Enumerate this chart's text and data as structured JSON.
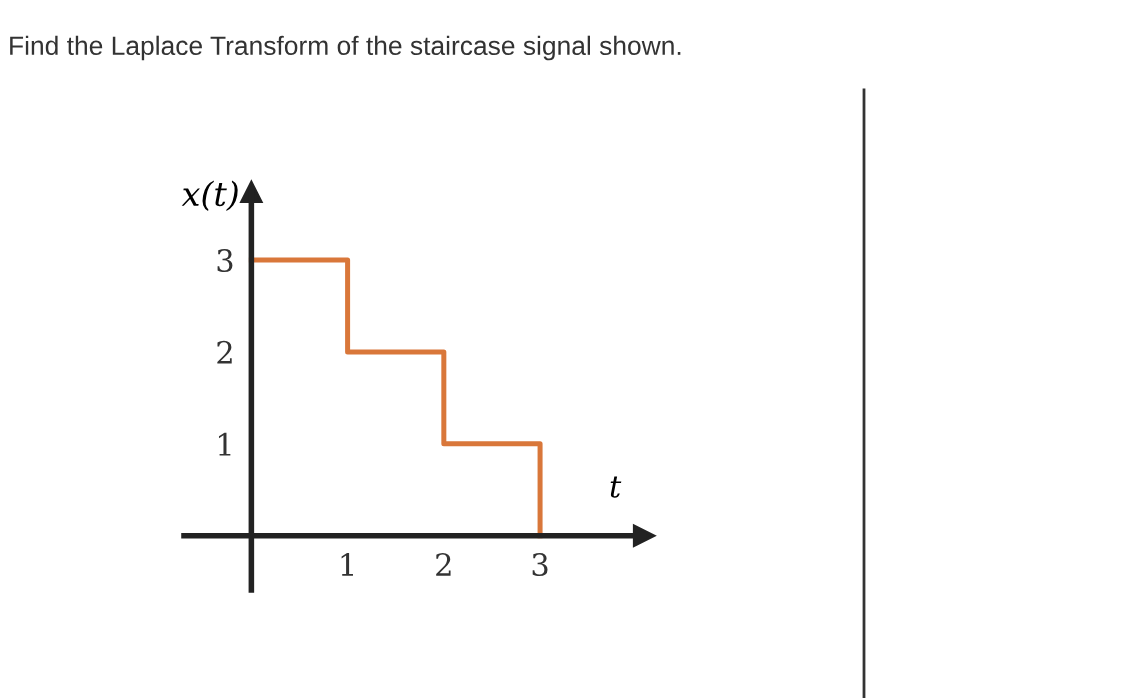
{
  "chart_data": {
    "type": "step",
    "title": "Find the Laplace Transform of the staircase signal shown.",
    "xlabel": "t",
    "ylabel": "x(t)",
    "x": [
      0,
      1,
      2,
      3
    ],
    "series": [
      {
        "color": "#d9773a",
        "values": [
          3,
          2,
          1,
          0
        ]
      }
    ],
    "xlim": [
      -0.7,
      4.08
    ],
    "ylim": [
      -0.59,
      3.74
    ],
    "xticks": [
      1,
      2,
      3
    ],
    "yticks": [
      1,
      2,
      3
    ],
    "grid": false,
    "legend": false
  }
}
